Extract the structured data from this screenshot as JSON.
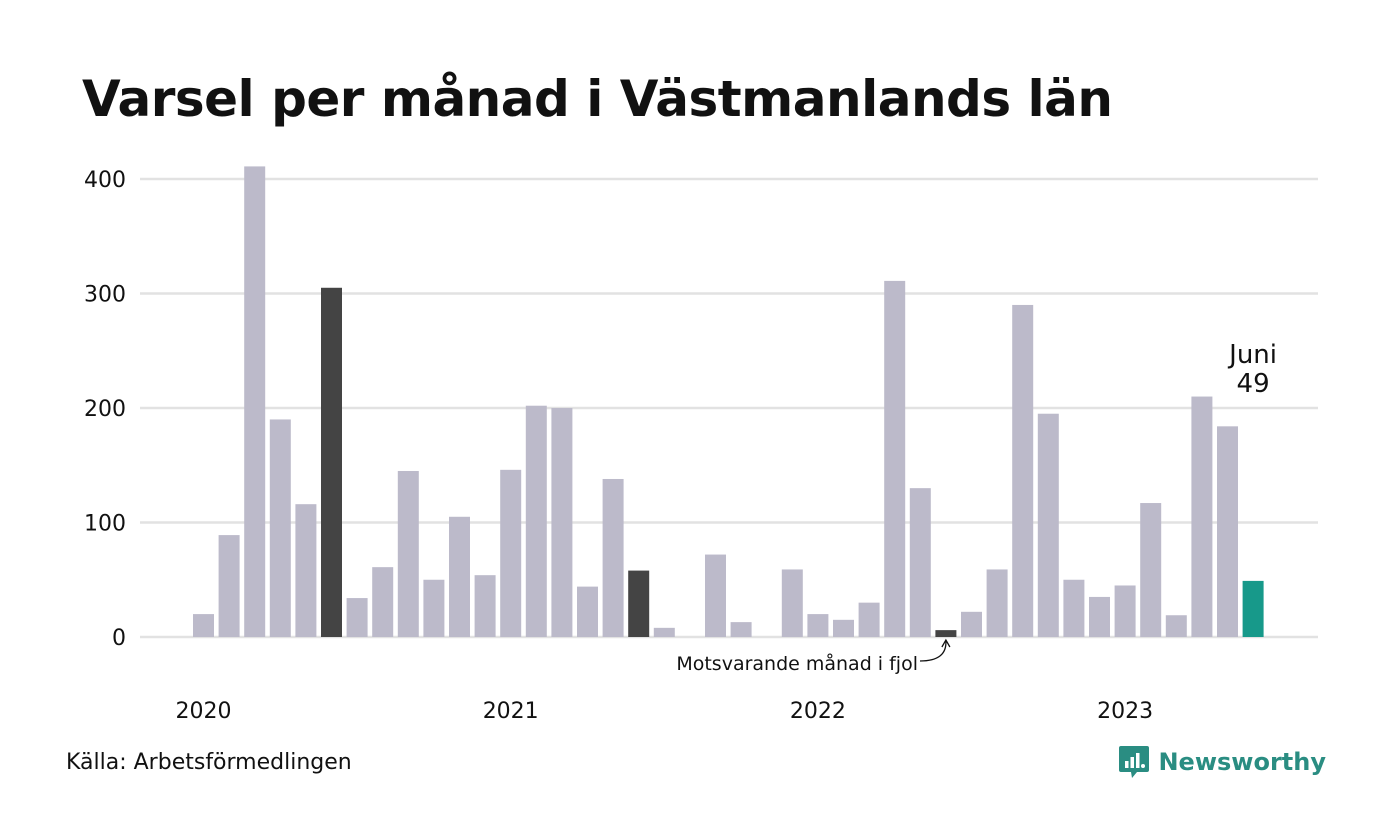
{
  "title": "Varsel per månad i Västmanlands län",
  "source": "Källa: Arbetsförmedlingen",
  "brand": {
    "name": "Newsworthy",
    "logo_icon": "bar-chart-speech-bubble-icon",
    "color": "#2a8d82"
  },
  "chart_data": {
    "type": "bar",
    "title": "Varsel per månad i Västmanlands län",
    "xlabel": "",
    "ylabel": "",
    "ylim": [
      0,
      430
    ],
    "yticks": [
      0,
      100,
      200,
      300,
      400
    ],
    "year_labels": [
      {
        "label": "2020",
        "index": 0
      },
      {
        "label": "2021",
        "index": 12
      },
      {
        "label": "2022",
        "index": 24
      },
      {
        "label": "2023",
        "index": 36
      }
    ],
    "grid": true,
    "colors": {
      "default": "#bcbaca",
      "same_month_previous_years": "#444444",
      "latest": "#17998a",
      "grid": "#e2e2e2"
    },
    "values": [
      20,
      89,
      411,
      190,
      116,
      305,
      34,
      61,
      145,
      50,
      105,
      54,
      146,
      202,
      200,
      44,
      138,
      58,
      8,
      0,
      72,
      13,
      0,
      59,
      20,
      15,
      30,
      311,
      130,
      6,
      22,
      59,
      290,
      195,
      50,
      35,
      45,
      117,
      19,
      210,
      184,
      49
    ],
    "highlight_indices": [
      5,
      17,
      29
    ],
    "latest_index": 41,
    "latest_label": {
      "month": "Juni",
      "value": "49"
    },
    "annotation": {
      "text": "Motsvarande månad i fjol",
      "target_index": 29
    }
  }
}
